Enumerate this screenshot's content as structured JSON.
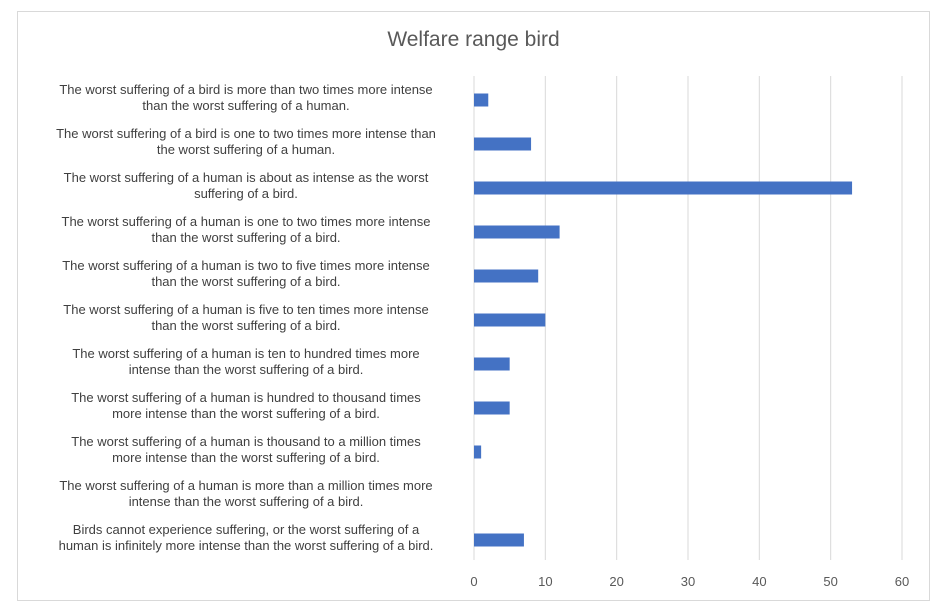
{
  "chart_data": {
    "type": "bar",
    "orientation": "horizontal",
    "title": "Welfare range bird",
    "categories": [
      [
        "The worst suffering of a bird is more than two times more intense",
        "than the worst suffering of a human."
      ],
      [
        "The worst suffering of a bird is one to two times more intense than",
        "the worst suffering of a human."
      ],
      [
        "The worst suffering of a human is about as intense as the worst",
        "suffering of a bird."
      ],
      [
        "The worst suffering of a human is one to two times more intense",
        "than the worst suffering of a bird."
      ],
      [
        "The worst suffering of a human is two to five times more intense",
        "than the worst suffering of a bird."
      ],
      [
        "The worst suffering of a human is five to ten times more intense",
        "than the worst suffering of a bird."
      ],
      [
        "The worst suffering of a human is ten to hundred times more",
        "intense than the worst suffering of a bird."
      ],
      [
        "The worst suffering of a human is hundred to thousand times",
        "more intense than the worst suffering of a bird."
      ],
      [
        "The worst suffering of a human is thousand to a million times",
        "more intense than the worst suffering of a bird."
      ],
      [
        "The worst suffering of a human is more than a million times more",
        "intense than the worst suffering of a bird."
      ],
      [
        "Birds cannot experience suffering, or the worst suffering of a",
        "human is infinitely more intense than the worst suffering of a bird."
      ]
    ],
    "values": [
      2,
      8,
      53,
      12,
      9,
      10,
      5,
      5,
      1,
      0,
      7
    ],
    "xlim": [
      0,
      60
    ],
    "xticks": [
      0,
      10,
      20,
      30,
      40,
      50,
      60
    ],
    "xlabel": "",
    "ylabel": "",
    "grid": "vertical",
    "bar_color": "#4472c4",
    "grid_color": "#d9d9d9"
  }
}
